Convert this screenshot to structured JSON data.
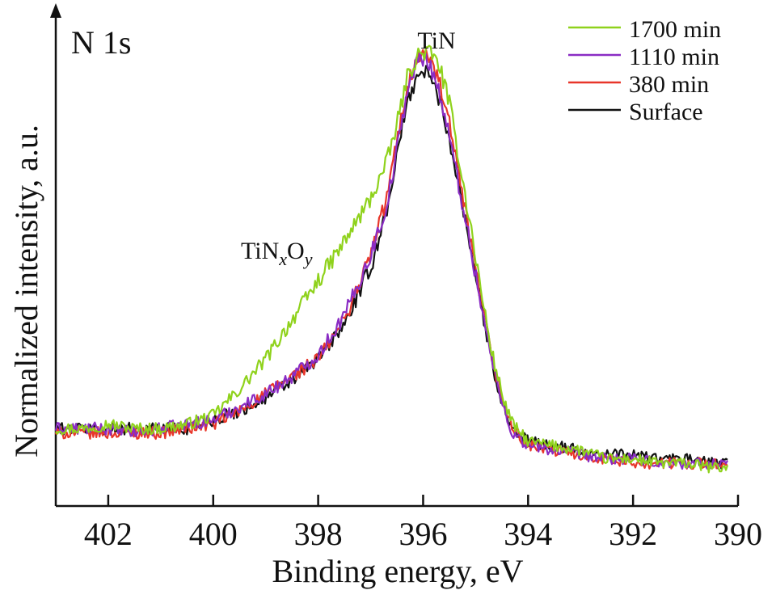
{
  "chart_data": {
    "type": "line",
    "title": "N 1s",
    "xlabel": "Binding energy, eV",
    "ylabel": "Normalized intensity, a.u.",
    "xlim": [
      403,
      390
    ],
    "ylim": [
      0,
      1.08
    ],
    "x_reversed": true,
    "x_ticks": [
      402,
      400,
      398,
      396,
      394,
      392,
      390
    ],
    "x_tick_labels": [
      "402",
      "400",
      "398",
      "396",
      "394",
      "392",
      "390"
    ],
    "y_ticks_labeled": false,
    "grid": false,
    "legend_position": "top-right",
    "annotations": {
      "peak_main": "TiN",
      "peak_shoulder": {
        "base": "TiN",
        "sub1": "x",
        "mid": "O",
        "sub2": "y"
      }
    },
    "series": [
      {
        "name": "1700 min",
        "color": "#8fd21c",
        "x": [
          403,
          402.5,
          402,
          401.5,
          401,
          400.5,
          400,
          399.5,
          399,
          398.5,
          398,
          397.5,
          397,
          396.7,
          396.5,
          396.3,
          396.1,
          395.9,
          395.7,
          395.5,
          395.3,
          395.1,
          394.9,
          394.7,
          394.5,
          394.3,
          394,
          393.5,
          393,
          392.5,
          392,
          391.5,
          391,
          390.5,
          390.2
        ],
        "y": [
          0.13,
          0.13,
          0.14,
          0.13,
          0.13,
          0.14,
          0.16,
          0.22,
          0.29,
          0.38,
          0.47,
          0.56,
          0.66,
          0.74,
          0.83,
          0.94,
          0.99,
          1.0,
          0.97,
          0.88,
          0.74,
          0.6,
          0.45,
          0.31,
          0.21,
          0.14,
          0.1,
          0.09,
          0.08,
          0.06,
          0.06,
          0.05,
          0.05,
          0.04,
          0.04
        ]
      },
      {
        "name": "1110 min",
        "color": "#8a2cc4",
        "x": [
          403,
          402.5,
          402,
          401.5,
          401,
          400.5,
          400,
          399.5,
          399,
          398.5,
          398,
          397.5,
          397,
          396.7,
          396.5,
          396.3,
          396.1,
          395.9,
          395.7,
          395.5,
          395.3,
          395.1,
          394.9,
          394.7,
          394.5,
          394.3,
          394,
          393.5,
          393,
          392.5,
          392,
          391.5,
          391,
          390.5,
          390.2
        ],
        "y": [
          0.13,
          0.13,
          0.13,
          0.12,
          0.13,
          0.14,
          0.15,
          0.18,
          0.21,
          0.25,
          0.3,
          0.39,
          0.53,
          0.64,
          0.77,
          0.91,
          0.98,
          0.98,
          0.91,
          0.8,
          0.68,
          0.55,
          0.42,
          0.29,
          0.19,
          0.12,
          0.09,
          0.08,
          0.07,
          0.06,
          0.06,
          0.05,
          0.05,
          0.05,
          0.05
        ]
      },
      {
        "name": "380 min",
        "color": "#e8362a",
        "x": [
          403,
          402.5,
          402,
          401.5,
          401,
          400.5,
          400,
          399.5,
          399,
          398.5,
          398,
          397.5,
          397,
          396.7,
          396.5,
          396.3,
          396.1,
          395.9,
          395.7,
          395.5,
          395.3,
          395.1,
          394.9,
          394.7,
          394.5,
          394.3,
          394,
          393.5,
          393,
          392.5,
          392,
          391.5,
          391,
          390.5,
          390.2
        ],
        "y": [
          0.12,
          0.12,
          0.12,
          0.12,
          0.12,
          0.13,
          0.14,
          0.17,
          0.21,
          0.25,
          0.29,
          0.38,
          0.53,
          0.66,
          0.79,
          0.92,
          0.99,
          0.99,
          0.93,
          0.83,
          0.7,
          0.56,
          0.43,
          0.3,
          0.2,
          0.13,
          0.09,
          0.08,
          0.07,
          0.06,
          0.05,
          0.05,
          0.05,
          0.05,
          0.04
        ]
      },
      {
        "name": "Surface",
        "color": "#111111",
        "x": [
          403,
          402.5,
          402,
          401.5,
          401,
          400.5,
          400,
          399.5,
          399,
          398.5,
          398,
          397.5,
          397,
          396.7,
          396.5,
          396.3,
          396.1,
          395.9,
          395.7,
          395.5,
          395.3,
          395.1,
          394.9,
          394.7,
          394.5,
          394.3,
          394,
          393.5,
          393,
          392.5,
          392,
          391.5,
          391,
          390.5,
          390.2
        ],
        "y": [
          0.13,
          0.13,
          0.13,
          0.13,
          0.13,
          0.13,
          0.15,
          0.17,
          0.2,
          0.24,
          0.29,
          0.37,
          0.5,
          0.63,
          0.76,
          0.88,
          0.95,
          0.95,
          0.89,
          0.8,
          0.68,
          0.55,
          0.42,
          0.29,
          0.19,
          0.13,
          0.1,
          0.09,
          0.08,
          0.07,
          0.07,
          0.06,
          0.06,
          0.05,
          0.05
        ]
      }
    ]
  }
}
